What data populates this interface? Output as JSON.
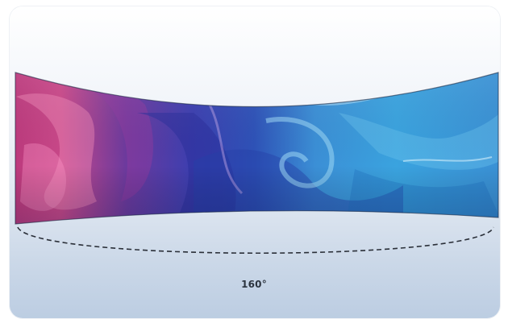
{
  "viewing_angle": {
    "label": "160°"
  },
  "colors": {
    "screen_left": "#c23a7e",
    "screen_mid": "#3d44b3",
    "screen_right": "#3ba6e0",
    "dash_line": "#2a2f38",
    "background_bottom": "#bccde2"
  },
  "icons": {
    "screen": "curved-display",
    "arc": "dashed-viewing-arc"
  }
}
